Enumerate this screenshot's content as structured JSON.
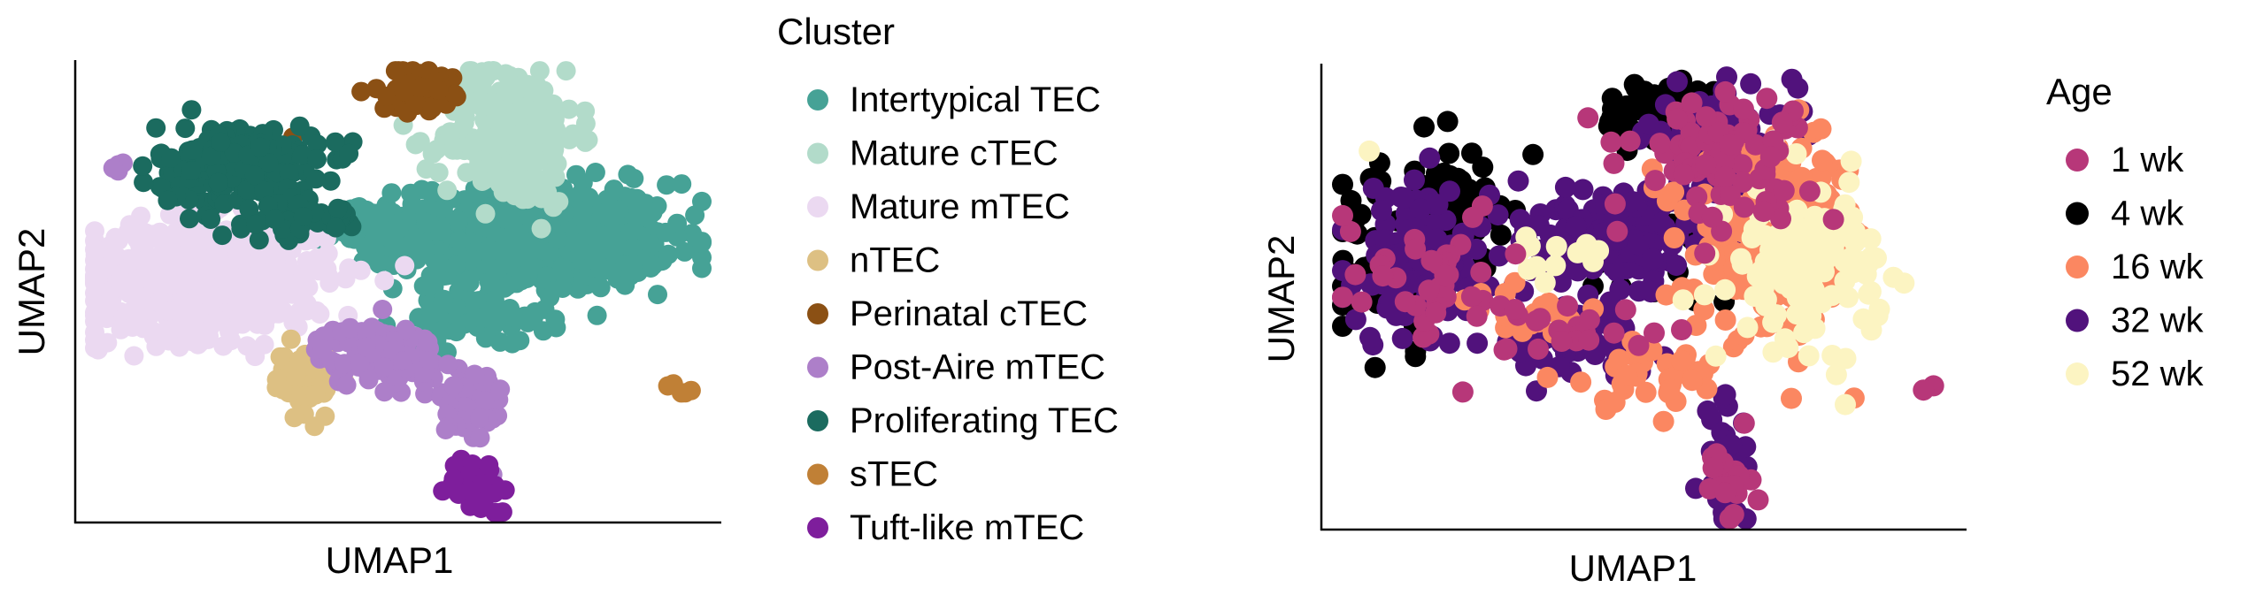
{
  "chart_data": [
    {
      "type": "scatter",
      "xlabel": "UMAP1",
      "ylabel": "UMAP2",
      "grid": false,
      "legend": {
        "title": "Cluster",
        "placement": "right",
        "entries": [
          {
            "name": "Intertypical TEC",
            "color": "#46A296"
          },
          {
            "name": "Mature cTEC",
            "color": "#B2DBCA"
          },
          {
            "name": "Mature mTEC",
            "color": "#EBD9F1"
          },
          {
            "name": "nTEC",
            "color": "#DDC083"
          },
          {
            "name": "Perinatal cTEC",
            "color": "#8B5014"
          },
          {
            "name": "Post-Aire mTEC",
            "color": "#AD7FC9"
          },
          {
            "name": "Proliferating TEC",
            "color": "#1B6B5F"
          },
          {
            "name": "sTEC",
            "color": "#C08036"
          },
          {
            "name": "Tuft-like mTEC",
            "color": "#7E1E9C"
          }
        ]
      },
      "series": [
        {
          "name": "Intertypical TEC",
          "color": "#46A296",
          "clusters": [
            {
              "center": [
                0.72,
                0.62
              ],
              "spread": [
                0.11,
                0.06
              ],
              "n": 650
            },
            {
              "center": [
                0.47,
                0.64
              ],
              "spread": [
                0.07,
                0.025
              ],
              "n": 90
            },
            {
              "center": [
                0.62,
                0.44
              ],
              "spread": [
                0.06,
                0.03
              ],
              "n": 70
            }
          ]
        },
        {
          "name": "Mature cTEC",
          "color": "#B2DBCA",
          "clusters": [
            {
              "center": [
                0.68,
                0.85
              ],
              "spread": [
                0.055,
                0.08
              ],
              "n": 260
            }
          ]
        },
        {
          "name": "Mature mTEC",
          "color": "#EBD9F1",
          "clusters": [
            {
              "center": [
                0.19,
                0.53
              ],
              "spread": [
                0.1,
                0.065
              ],
              "n": 550
            }
          ]
        },
        {
          "name": "nTEC",
          "color": "#DDC083",
          "clusters": [
            {
              "center": [
                0.35,
                0.3
              ],
              "spread": [
                0.025,
                0.04
              ],
              "n": 45
            }
          ]
        },
        {
          "name": "Perinatal cTEC",
          "color": "#8B5014",
          "clusters": [
            {
              "center": [
                0.53,
                0.95
              ],
              "spread": [
                0.03,
                0.025
              ],
              "n": 60
            },
            {
              "center": [
                0.33,
                0.84
              ],
              "spread": [
                0.003,
                0.003
              ],
              "n": 1
            }
          ]
        },
        {
          "name": "Post-Aire mTEC",
          "color": "#AD7FC9",
          "clusters": [
            {
              "center": [
                0.47,
                0.36
              ],
              "spread": [
                0.05,
                0.035
              ],
              "n": 110
            },
            {
              "center": [
                0.62,
                0.24
              ],
              "spread": [
                0.025,
                0.055
              ],
              "n": 50
            },
            {
              "center": [
                0.05,
                0.78
              ],
              "spread": [
                0.008,
                0.006
              ],
              "n": 4
            }
          ]
        },
        {
          "name": "Proliferating TEC",
          "color": "#1B6B5F",
          "clusters": [
            {
              "center": [
                0.24,
                0.78
              ],
              "spread": [
                0.065,
                0.045
              ],
              "n": 220
            },
            {
              "center": [
                0.35,
                0.66
              ],
              "spread": [
                0.05,
                0.02
              ],
              "n": 40
            },
            {
              "center": [
                0.09,
                0.77
              ],
              "spread": [
                0.004,
                0.004
              ],
              "n": 1
            }
          ]
        },
        {
          "name": "sTEC",
          "color": "#C08036",
          "clusters": [
            {
              "center": [
                0.95,
                0.29
              ],
              "spread": [
                0.012,
                0.008
              ],
              "n": 5
            }
          ]
        },
        {
          "name": "Tuft-like mTEC",
          "color": "#7E1E9C",
          "clusters": [
            {
              "center": [
                0.63,
                0.07
              ],
              "spread": [
                0.025,
                0.03
              ],
              "n": 45
            }
          ]
        }
      ]
    },
    {
      "type": "scatter",
      "xlabel": "UMAP1",
      "ylabel": "UMAP2",
      "grid": false,
      "legend": {
        "title": "Age",
        "placement": "right",
        "entries": [
          {
            "name": "1 wk",
            "color": "#B73779"
          },
          {
            "name": "4 wk",
            "color": "#000000"
          },
          {
            "name": "16 wk",
            "color": "#FB8761"
          },
          {
            "name": "32 wk",
            "color": "#51127C"
          },
          {
            "name": "52 wk",
            "color": "#FCF4C2"
          }
        ]
      },
      "series": [
        {
          "name": "4 wk",
          "color": "#000000",
          "clusters": [
            {
              "center": [
                0.53,
                0.91
              ],
              "spread": [
                0.05,
                0.04
              ],
              "n": 90
            },
            {
              "center": [
                0.1,
                0.6
              ],
              "spread": [
                0.06,
                0.1
              ],
              "n": 80
            },
            {
              "center": [
                0.2,
                0.72
              ],
              "spread": [
                0.06,
                0.05
              ],
              "n": 35
            },
            {
              "center": [
                0.5,
                0.58
              ],
              "spread": [
                0.07,
                0.05
              ],
              "n": 25
            }
          ]
        },
        {
          "name": "32 wk",
          "color": "#51127C",
          "clusters": [
            {
              "center": [
                0.45,
                0.64
              ],
              "spread": [
                0.1,
                0.05
              ],
              "n": 170
            },
            {
              "center": [
                0.13,
                0.58
              ],
              "spread": [
                0.07,
                0.09
              ],
              "n": 110
            },
            {
              "center": [
                0.62,
                0.85
              ],
              "spread": [
                0.06,
                0.06
              ],
              "n": 100
            },
            {
              "center": [
                0.38,
                0.4
              ],
              "spread": [
                0.07,
                0.04
              ],
              "n": 50
            },
            {
              "center": [
                0.63,
                0.15
              ],
              "spread": [
                0.02,
                0.07
              ],
              "n": 30
            }
          ]
        },
        {
          "name": "16 wk",
          "color": "#FB8761",
          "clusters": [
            {
              "center": [
                0.72,
                0.62
              ],
              "spread": [
                0.07,
                0.1
              ],
              "n": 260
            },
            {
              "center": [
                0.5,
                0.33
              ],
              "spread": [
                0.07,
                0.04
              ],
              "n": 35
            },
            {
              "center": [
                0.3,
                0.45
              ],
              "spread": [
                0.05,
                0.03
              ],
              "n": 20
            }
          ]
        },
        {
          "name": "52 wk",
          "color": "#FCF4C2",
          "clusters": [
            {
              "center": [
                0.76,
                0.58
              ],
              "spread": [
                0.06,
                0.09
              ],
              "n": 130
            },
            {
              "center": [
                0.35,
                0.58
              ],
              "spread": [
                0.05,
                0.04
              ],
              "n": 12
            },
            {
              "center": [
                0.05,
                0.82
              ],
              "spread": [
                0.004,
                0.004
              ],
              "n": 1
            }
          ]
        },
        {
          "name": "1 wk",
          "color": "#B73779",
          "clusters": [
            {
              "center": [
                0.62,
                0.82
              ],
              "spread": [
                0.07,
                0.07
              ],
              "n": 80
            },
            {
              "center": [
                0.15,
                0.55
              ],
              "spread": [
                0.08,
                0.08
              ],
              "n": 40
            },
            {
              "center": [
                0.63,
                0.12
              ],
              "spread": [
                0.02,
                0.06
              ],
              "n": 20
            },
            {
              "center": [
                0.4,
                0.42
              ],
              "spread": [
                0.06,
                0.04
              ],
              "n": 20
            },
            {
              "center": [
                0.96,
                0.3
              ],
              "spread": [
                0.006,
                0.006
              ],
              "n": 2
            },
            {
              "center": [
                0.41,
                0.9
              ],
              "spread": [
                0.003,
                0.003
              ],
              "n": 1
            }
          ]
        }
      ]
    }
  ]
}
